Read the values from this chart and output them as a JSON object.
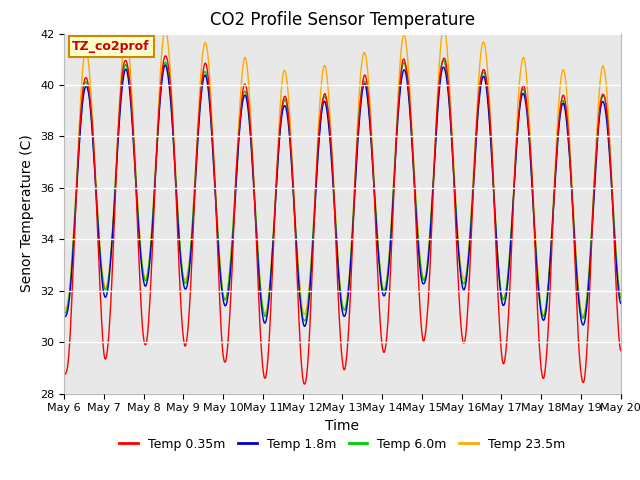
{
  "title": "CO2 Profile Sensor Temperature",
  "xlabel": "Time",
  "ylabel": "Senor Temperature (C)",
  "annotation": "TZ_co2prof",
  "ylim": [
    28,
    42
  ],
  "x_tick_labels": [
    "May 6",
    "May 7",
    "May 8",
    "May 9",
    "May 10",
    "May 11",
    "May 12",
    "May 13",
    "May 14",
    "May 15",
    "May 16",
    "May 17",
    "May 18",
    "May 19",
    "May 20"
  ],
  "legend": [
    "Temp 0.35m",
    "Temp 1.8m",
    "Temp 6.0m",
    "Temp 23.5m"
  ],
  "colors": [
    "#ff0000",
    "#0000cc",
    "#00cc00",
    "#ffaa00"
  ],
  "plot_bg_color": "#e8e8e8",
  "title_fontsize": 12,
  "axis_fontsize": 10,
  "tick_fontsize": 8,
  "legend_fontsize": 9
}
